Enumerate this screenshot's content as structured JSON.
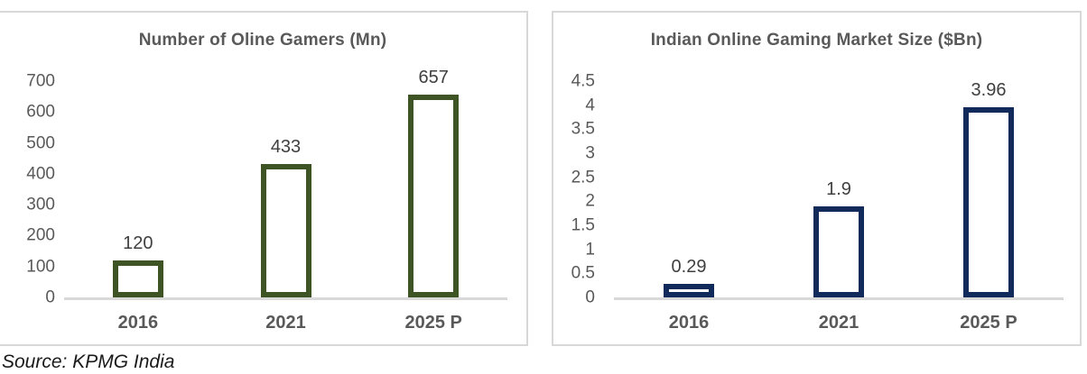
{
  "source_note": "Source: KPMG India",
  "styles": {
    "panel_border": "#D8D8D8",
    "axis_line": "#D9D9D9",
    "text_gray": "#595959",
    "data_label_color": "#3F3F3F",
    "source_color": "#1A1A1A"
  },
  "chart_data": [
    {
      "type": "bar",
      "title": "Number of Oline Gamers (Mn)",
      "categories": [
        "2016",
        "2021",
        "2025 P"
      ],
      "values": [
        120,
        433,
        657
      ],
      "data_labels": [
        "120",
        "433",
        "657"
      ],
      "y_tick_labels": [
        "0",
        "100",
        "200",
        "300",
        "400",
        "500",
        "600",
        "700"
      ],
      "y_max": 700,
      "ylim": [
        0,
        700
      ],
      "xlabel": "",
      "ylabel": "",
      "grid": false,
      "legend": false,
      "bar_border": "#3F5425",
      "bar_fill": "#FFFFFF"
    },
    {
      "type": "bar",
      "title": "Indian Online Gaming Market Size ($Bn)",
      "categories": [
        "2016",
        "2021",
        "2025 P"
      ],
      "values": [
        0.29,
        1.9,
        3.96
      ],
      "data_labels": [
        "0.29",
        "1.9",
        "3.96"
      ],
      "y_tick_labels": [
        "0",
        "0.5",
        "1",
        "1.5",
        "2",
        "2.5",
        "3",
        "3.5",
        "4",
        "4.5"
      ],
      "y_max": 4.5,
      "ylim": [
        0,
        4.5
      ],
      "xlabel": "",
      "ylabel": "",
      "grid": false,
      "legend": false,
      "bar_border": "#0F2A5B",
      "bar_fill": "#FFFFFF"
    }
  ]
}
